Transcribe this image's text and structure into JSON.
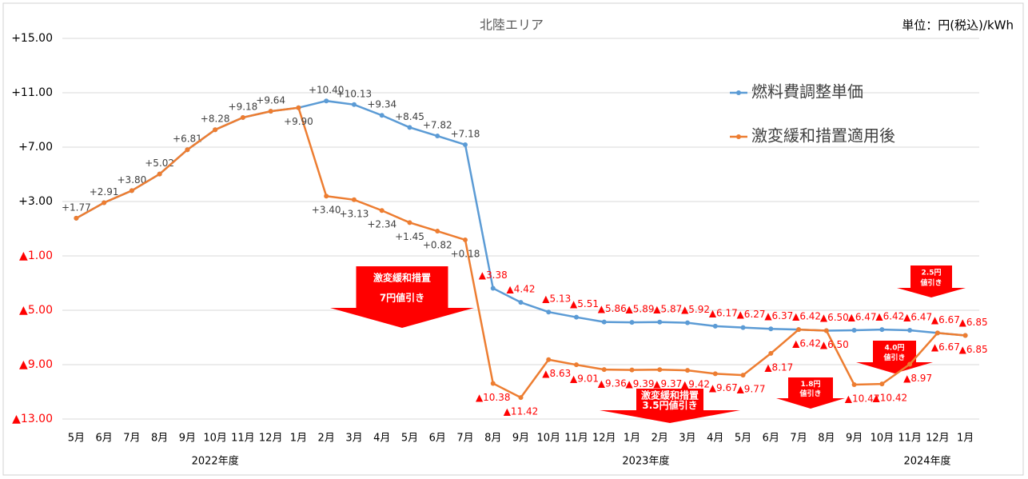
{
  "chart_data": {
    "type": "line",
    "title": "北陸エリア",
    "unit_label": "単位：円(税込)/kWh",
    "categories": [
      "5月",
      "6月",
      "7月",
      "8月",
      "9月",
      "10月",
      "11月",
      "12月",
      "1月",
      "2月",
      "3月",
      "4月",
      "5月",
      "6月",
      "7月",
      "8月",
      "9月",
      "10月",
      "11月",
      "12月",
      "1月",
      "2月",
      "3月",
      "4月",
      "5月",
      "6月",
      "7月",
      "8月",
      "9月",
      "10月",
      "11月",
      "12月",
      "1月"
    ],
    "fiscal_years": [
      "2022年度",
      "2023年度",
      "2024年度"
    ],
    "series": [
      {
        "name": "燃料費調整単価",
        "color": "#5b9bd5",
        "values": [
          1.77,
          2.91,
          3.8,
          5.02,
          6.81,
          8.28,
          9.18,
          9.64,
          9.9,
          10.4,
          10.13,
          9.34,
          8.45,
          7.82,
          7.18,
          -3.38,
          -4.42,
          -5.13,
          -5.51,
          -5.86,
          -5.89,
          -5.87,
          -5.92,
          -6.17,
          -6.27,
          -6.37,
          -6.42,
          -6.5,
          -6.47,
          -6.42,
          -6.47,
          -6.67,
          -6.85
        ],
        "value_labels": [
          "+1.77",
          "+2.91",
          "+3.80",
          "+5.02",
          "+6.81",
          "+8.28",
          "+9.18",
          "+9.64",
          null,
          "+10.40",
          "+10.13",
          "+9.34",
          "+8.45",
          "+7.82",
          "+7.18",
          "▲3.38",
          "▲4.42",
          "▲5.13",
          "▲5.51",
          "▲5.86",
          "▲5.89",
          "▲5.87",
          "▲5.92",
          "▲6.17",
          "▲6.27",
          "▲6.37",
          "▲6.42",
          "▲6.50",
          "▲6.47",
          "▲6.42",
          "▲6.47",
          "▲6.67",
          "▲6.85"
        ]
      },
      {
        "name": "激変緩和措置適用後",
        "color": "#ed7d31",
        "values": [
          1.77,
          2.91,
          3.8,
          5.02,
          6.81,
          8.28,
          9.18,
          9.64,
          9.9,
          3.4,
          3.13,
          2.34,
          1.45,
          0.82,
          0.18,
          -10.38,
          -11.42,
          -8.63,
          -9.01,
          -9.36,
          -9.39,
          -9.37,
          -9.42,
          -9.67,
          -9.77,
          -8.17,
          -6.42,
          -6.5,
          -10.47,
          -10.42,
          -8.97,
          -6.67,
          -6.85
        ],
        "value_labels": [
          null,
          null,
          null,
          null,
          null,
          null,
          null,
          null,
          "+9.90",
          "+3.40",
          "+3.13",
          "+2.34",
          "+1.45",
          "+0.82",
          "+0.18",
          "▲10.38",
          "▲11.42",
          "▲8.63",
          "▲9.01",
          "▲9.36",
          "▲9.39",
          "▲9.37",
          "▲9.42",
          "▲9.67",
          "▲9.77",
          "▲8.17",
          "▲6.42",
          "▲6.50",
          "▲10.47",
          "▲10.42",
          "▲8.97",
          "▲6.67",
          "▲6.85"
        ]
      }
    ],
    "ylim": [
      -13,
      15
    ],
    "yticks": [
      {
        "value": 15,
        "label": "+15.00"
      },
      {
        "value": 11,
        "label": "+11.00"
      },
      {
        "value": 7,
        "label": "+7.00"
      },
      {
        "value": 3,
        "label": "+3.00"
      },
      {
        "value": -1,
        "label": "▲1.00"
      },
      {
        "value": -5,
        "label": "▲5.00"
      },
      {
        "value": -9,
        "label": "▲9.00"
      },
      {
        "value": -13,
        "label": "▲13.00"
      }
    ],
    "grid": true,
    "annotations": [
      [
        "激変緩和措置",
        "7円値引き"
      ],
      [
        "激変緩和措置",
        "3.5円値引き"
      ],
      [
        "1.8円",
        "値引き"
      ],
      [
        "4.0円",
        "値引き"
      ],
      [
        "2.5円",
        "値引き"
      ]
    ]
  }
}
